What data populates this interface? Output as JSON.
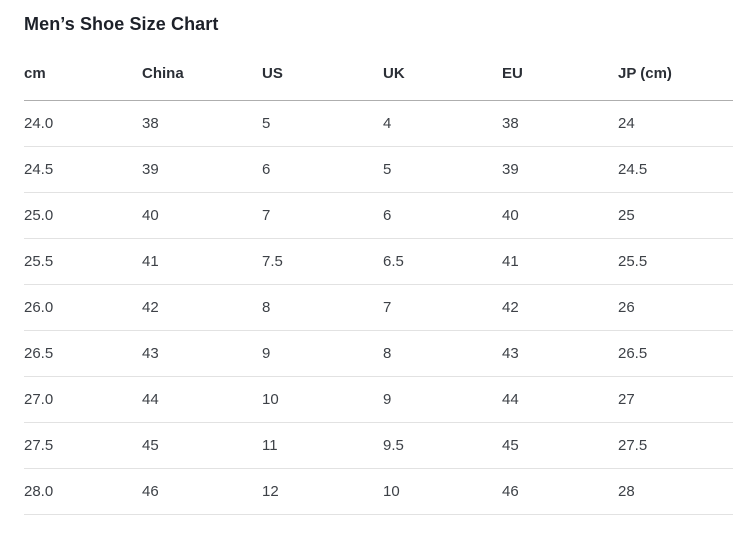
{
  "page": {
    "title": "Men’s Shoe Size Chart"
  },
  "table": {
    "columns": [
      "cm",
      "China",
      "US",
      "UK",
      "EU",
      "JP (cm)"
    ],
    "rows": [
      [
        "24.0",
        "38",
        "5",
        "4",
        "38",
        "24"
      ],
      [
        "24.5",
        "39",
        "6",
        "5",
        "39",
        "24.5"
      ],
      [
        "25.0",
        "40",
        "7",
        "6",
        "40",
        "25"
      ],
      [
        "25.5",
        "41",
        "7.5",
        "6.5",
        "41",
        "25.5"
      ],
      [
        "26.0",
        "42",
        "8",
        "7",
        "42",
        "26"
      ],
      [
        "26.5",
        "43",
        "9",
        "8",
        "43",
        "26.5"
      ],
      [
        "27.0",
        "44",
        "10",
        "9",
        "44",
        "27"
      ],
      [
        "27.5",
        "45",
        "11",
        "9.5",
        "45",
        "27.5"
      ],
      [
        "28.0",
        "46",
        "12",
        "10",
        "46",
        "28"
      ]
    ]
  },
  "colors": {
    "background": "#ffffff",
    "title_text": "#1d2129",
    "header_text": "#2b2f36",
    "cell_text": "#3d4147",
    "header_border": "#aeaeae",
    "row_border": "#e2e2e2"
  }
}
